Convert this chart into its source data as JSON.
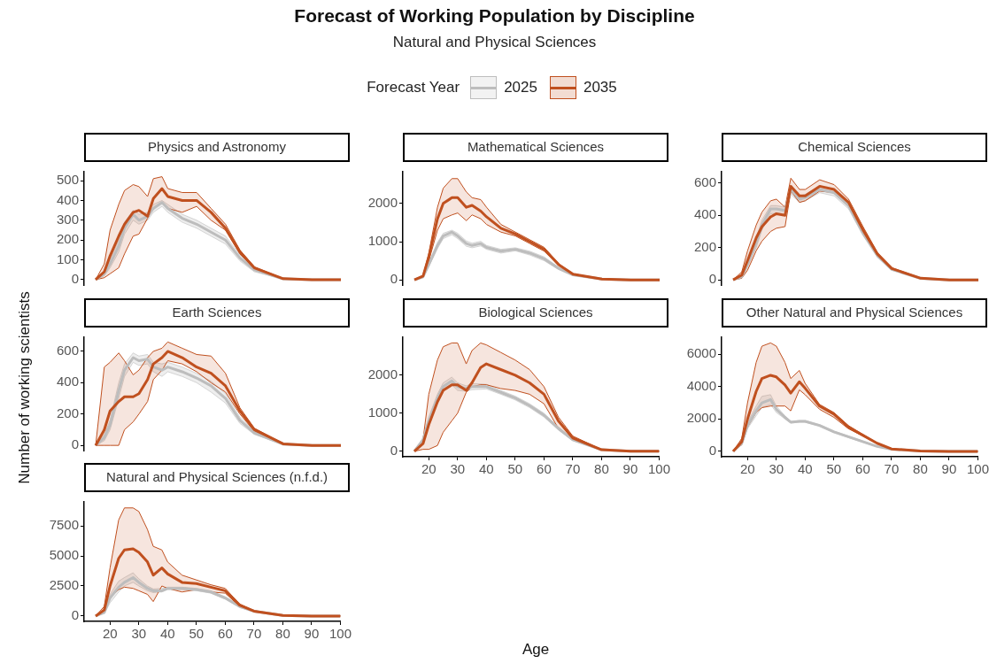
{
  "chart_data": [
    {
      "type": "line",
      "title": "Physics and Astronomy",
      "annotations": [
        "Forecast of Working Population by Discipline",
        "Natural and Physical Sciences"
      ],
      "legend_title": "Forecast Year",
      "legend": "top",
      "tick_labels": "y",
      "x": [
        15,
        18,
        20,
        23,
        25,
        28,
        30,
        33,
        35,
        38,
        40,
        45,
        50,
        55,
        60,
        65,
        70,
        80,
        90,
        100
      ],
      "xlim": [
        11,
        100
      ],
      "xticks": [
        20,
        30,
        40,
        50,
        60,
        70,
        80,
        90,
        100
      ],
      "ylim": [
        -27,
        545
      ],
      "yticks": [
        0,
        100,
        200,
        300,
        400,
        500
      ],
      "series": [
        {
          "name": "2025",
          "color": "#bdbdbd",
          "values": [
            0,
            30,
            80,
            170,
            260,
            330,
            300,
            320,
            360,
            390,
            360,
            310,
            280,
            240,
            200,
            110,
            50,
            4,
            0,
            0
          ],
          "lower": [
            0,
            20,
            60,
            140,
            230,
            300,
            280,
            300,
            340,
            370,
            340,
            290,
            260,
            220,
            180,
            95,
            40,
            3,
            0,
            0
          ],
          "upper": [
            0,
            40,
            100,
            200,
            290,
            350,
            330,
            340,
            380,
            400,
            380,
            330,
            300,
            260,
            220,
            125,
            60,
            6,
            0,
            0
          ]
        },
        {
          "name": "2035",
          "color": "#c0501f",
          "values": [
            0,
            40,
            120,
            220,
            280,
            340,
            350,
            320,
            410,
            460,
            420,
            400,
            400,
            340,
            260,
            140,
            60,
            5,
            0,
            0
          ],
          "lower": [
            0,
            10,
            30,
            60,
            130,
            220,
            230,
            310,
            360,
            390,
            360,
            340,
            370,
            300,
            250,
            130,
            55,
            4,
            0,
            0
          ],
          "upper": [
            0,
            80,
            250,
            380,
            450,
            480,
            470,
            420,
            510,
            520,
            460,
            440,
            440,
            360,
            280,
            150,
            65,
            6,
            0,
            0
          ]
        }
      ]
    },
    {
      "type": "line",
      "title": "Mathematical Sciences",
      "tick_labels": "y",
      "x": [
        15,
        18,
        20,
        23,
        25,
        28,
        30,
        33,
        35,
        38,
        40,
        45,
        50,
        55,
        60,
        65,
        70,
        80,
        90,
        100
      ],
      "xlim": [
        11,
        100
      ],
      "xticks": [
        20,
        30,
        40,
        50,
        60,
        70,
        80,
        90,
        100
      ],
      "ylim": [
        -135,
        2830
      ],
      "yticks": [
        0,
        1000,
        2000
      ],
      "series": [
        {
          "color": "#bdbdbd",
          "values": [
            0,
            80,
            400,
            900,
            1150,
            1250,
            1150,
            950,
            900,
            950,
            850,
            750,
            800,
            700,
            550,
            300,
            130,
            20,
            0,
            0
          ],
          "lower": [
            0,
            60,
            350,
            820,
            1080,
            1180,
            1080,
            880,
            840,
            890,
            800,
            700,
            760,
            650,
            500,
            270,
            110,
            15,
            0,
            0
          ],
          "upper": [
            0,
            100,
            450,
            980,
            1220,
            1300,
            1220,
            1020,
            960,
            1010,
            900,
            800,
            840,
            750,
            600,
            330,
            150,
            22,
            0,
            0
          ]
        },
        {
          "color": "#c0501f",
          "values": [
            0,
            100,
            600,
            1600,
            2000,
            2150,
            2150,
            1900,
            1950,
            1800,
            1650,
            1350,
            1200,
            1000,
            800,
            400,
            150,
            20,
            0,
            0
          ],
          "lower": [
            0,
            80,
            500,
            1300,
            1600,
            1700,
            1750,
            1550,
            1700,
            1600,
            1450,
            1250,
            1150,
            950,
            750,
            380,
            140,
            18,
            0,
            0
          ],
          "upper": [
            0,
            120,
            700,
            1900,
            2400,
            2650,
            2650,
            2300,
            2150,
            2100,
            1900,
            1450,
            1250,
            1050,
            850,
            420,
            160,
            22,
            0,
            0
          ]
        }
      ]
    },
    {
      "type": "line",
      "title": "Chemical Sciences",
      "tick_labels": "y",
      "x": [
        15,
        18,
        20,
        23,
        25,
        28,
        30,
        33,
        35,
        38,
        40,
        45,
        50,
        55,
        60,
        65,
        70,
        80,
        90,
        100
      ],
      "xlim": [
        11,
        100
      ],
      "xticks": [
        20,
        30,
        40,
        50,
        60,
        70,
        80,
        90,
        100
      ],
      "ylim": [
        -32,
        670
      ],
      "yticks": [
        0,
        200,
        400,
        600
      ],
      "series": [
        {
          "color": "#bdbdbd",
          "values": [
            0,
            20,
            100,
            230,
            340,
            440,
            440,
            430,
            560,
            500,
            510,
            560,
            540,
            460,
            290,
            150,
            65,
            9,
            0,
            0
          ],
          "lower": [
            0,
            10,
            80,
            200,
            310,
            410,
            410,
            400,
            530,
            480,
            490,
            540,
            520,
            440,
            275,
            140,
            60,
            8,
            0,
            0
          ],
          "upper": [
            0,
            30,
            120,
            260,
            370,
            460,
            460,
            450,
            580,
            520,
            530,
            580,
            560,
            480,
            305,
            160,
            70,
            10,
            0,
            0
          ]
        },
        {
          "color": "#c0501f",
          "values": [
            0,
            30,
            120,
            260,
            330,
            390,
            410,
            400,
            580,
            520,
            520,
            580,
            560,
            480,
            310,
            160,
            70,
            10,
            0,
            0
          ],
          "lower": [
            0,
            10,
            60,
            180,
            240,
            300,
            320,
            330,
            550,
            480,
            490,
            550,
            540,
            460,
            300,
            150,
            65,
            9,
            0,
            0
          ],
          "upper": [
            0,
            50,
            180,
            340,
            420,
            490,
            500,
            450,
            630,
            560,
            560,
            620,
            590,
            500,
            330,
            170,
            75,
            12,
            0,
            0
          ]
        }
      ]
    },
    {
      "type": "line",
      "title": "Earth Sciences",
      "ylabel": "Number of working scientists",
      "tick_labels": "y",
      "x": [
        15,
        18,
        20,
        23,
        25,
        28,
        30,
        33,
        35,
        38,
        40,
        45,
        50,
        55,
        60,
        65,
        70,
        80,
        90,
        100
      ],
      "xlim": [
        11,
        100
      ],
      "xticks": [
        20,
        30,
        40,
        50,
        60,
        70,
        80,
        90,
        100
      ],
      "ylim": [
        -33,
        690
      ],
      "yticks": [
        0,
        200,
        400,
        600
      ],
      "series": [
        {
          "color": "#bdbdbd",
          "values": [
            0,
            50,
            130,
            350,
            480,
            560,
            540,
            550,
            500,
            480,
            500,
            470,
            430,
            380,
            300,
            160,
            80,
            8,
            0,
            0
          ],
          "lower": [
            0,
            30,
            100,
            300,
            440,
            530,
            510,
            520,
            470,
            440,
            470,
            440,
            400,
            340,
            270,
            140,
            70,
            6,
            0,
            0
          ],
          "upper": [
            0,
            70,
            160,
            400,
            520,
            590,
            570,
            580,
            530,
            520,
            530,
            500,
            460,
            410,
            330,
            180,
            90,
            10,
            0,
            0
          ]
        },
        {
          "color": "#c0501f",
          "values": [
            0,
            100,
            220,
            280,
            310,
            310,
            330,
            420,
            520,
            560,
            600,
            560,
            500,
            460,
            380,
            220,
            100,
            10,
            0,
            0
          ],
          "lower": [
            0,
            0,
            0,
            0,
            100,
            150,
            200,
            280,
            420,
            480,
            540,
            520,
            470,
            400,
            340,
            200,
            90,
            8,
            0,
            0
          ],
          "upper": [
            0,
            500,
            530,
            590,
            540,
            450,
            480,
            560,
            600,
            620,
            660,
            620,
            580,
            570,
            460,
            240,
            110,
            12,
            0,
            0
          ]
        }
      ]
    },
    {
      "type": "line",
      "title": "Biological Sciences",
      "xlabel": "Age",
      "x": [
        15,
        18,
        20,
        23,
        25,
        28,
        30,
        33,
        35,
        38,
        40,
        45,
        50,
        55,
        60,
        65,
        70,
        80,
        90,
        100
      ],
      "xlim": [
        11,
        100
      ],
      "xticks": [
        20,
        30,
        40,
        50,
        60,
        70,
        80,
        90,
        100
      ],
      "ylim": [
        -145,
        3000
      ],
      "yticks": [
        0,
        1000,
        2000
      ],
      "series": [
        {
          "color": "#bdbdbd",
          "values": [
            0,
            300,
            800,
            1400,
            1700,
            1850,
            1700,
            1650,
            1700,
            1700,
            1700,
            1550,
            1400,
            1200,
            950,
            600,
            300,
            40,
            0,
            0
          ],
          "lower": [
            0,
            250,
            700,
            1300,
            1600,
            1750,
            1600,
            1580,
            1620,
            1630,
            1640,
            1500,
            1350,
            1150,
            900,
            560,
            280,
            35,
            0,
            0
          ],
          "upper": [
            0,
            350,
            900,
            1500,
            1800,
            1950,
            1800,
            1720,
            1780,
            1770,
            1760,
            1600,
            1450,
            1250,
            1000,
            640,
            320,
            45,
            0,
            0
          ]
        },
        {
          "color": "#c0501f",
          "values": [
            0,
            200,
            700,
            1300,
            1600,
            1750,
            1750,
            1600,
            1800,
            2200,
            2300,
            2150,
            2000,
            1800,
            1500,
            800,
            350,
            40,
            0,
            0
          ],
          "lower": [
            0,
            50,
            50,
            150,
            500,
            800,
            1000,
            1550,
            1700,
            1750,
            1750,
            1650,
            1600,
            1500,
            1250,
            600,
            300,
            35,
            0,
            0
          ],
          "upper": [
            0,
            300,
            1500,
            2400,
            2750,
            2850,
            2850,
            2300,
            2650,
            2850,
            2800,
            2600,
            2400,
            2150,
            1700,
            900,
            400,
            45,
            0,
            0
          ]
        }
      ]
    },
    {
      "type": "line",
      "title": "Other Natural and Physical Sciences",
      "x": [
        15,
        18,
        20,
        23,
        25,
        28,
        30,
        33,
        35,
        38,
        40,
        45,
        50,
        55,
        60,
        65,
        70,
        80,
        90,
        100
      ],
      "xlim": [
        11,
        100
      ],
      "xticks": [
        20,
        30,
        40,
        50,
        60,
        70,
        80,
        90,
        100
      ],
      "ylim": [
        -335,
        7050
      ],
      "yticks": [
        0,
        2000,
        4000,
        6000
      ],
      "series": [
        {
          "color": "#bdbdbd",
          "values": [
            0,
            500,
            1600,
            2500,
            3000,
            3200,
            2600,
            2100,
            1800,
            1850,
            1850,
            1600,
            1200,
            900,
            600,
            300,
            130,
            20,
            0,
            0
          ],
          "lower": [
            0,
            400,
            1400,
            2200,
            2700,
            2900,
            2400,
            2000,
            1750,
            1800,
            1800,
            1550,
            1150,
            850,
            560,
            280,
            115,
            15,
            0,
            0
          ],
          "upper": [
            0,
            600,
            1800,
            2800,
            3400,
            3500,
            2800,
            2200,
            1850,
            1900,
            1900,
            1650,
            1250,
            950,
            640,
            320,
            145,
            22,
            0,
            0
          ]
        },
        {
          "color": "#c0501f",
          "values": [
            0,
            600,
            2000,
            3700,
            4500,
            4700,
            4600,
            4100,
            3600,
            4300,
            3900,
            2800,
            2300,
            1500,
            1000,
            500,
            150,
            20,
            0,
            0
          ],
          "lower": [
            0,
            400,
            1500,
            2400,
            2700,
            2800,
            2800,
            2800,
            2500,
            3800,
            3500,
            2600,
            2100,
            1400,
            950,
            480,
            140,
            18,
            0,
            0
          ],
          "upper": [
            0,
            800,
            3000,
            5500,
            6500,
            6700,
            6500,
            5500,
            4500,
            5000,
            4200,
            2900,
            2400,
            1600,
            1050,
            520,
            160,
            22,
            0,
            0
          ]
        }
      ]
    },
    {
      "type": "line",
      "title": "Natural and Physical Sciences (n.f.d.)",
      "x": [
        15,
        18,
        20,
        23,
        25,
        28,
        30,
        33,
        35,
        38,
        40,
        45,
        50,
        55,
        60,
        65,
        70,
        80,
        90,
        100
      ],
      "xlim": [
        11,
        100
      ],
      "xticks": [
        20,
        30,
        40,
        50,
        60,
        70,
        80,
        90,
        100
      ],
      "ylim": [
        -450,
        9500
      ],
      "yticks": [
        0,
        2500,
        5000,
        7500
      ],
      "series": [
        {
          "color": "#bdbdbd",
          "values": [
            0,
            300,
            1500,
            2400,
            2800,
            3200,
            2800,
            2300,
            2100,
            2100,
            2300,
            2300,
            2200,
            2000,
            1500,
            800,
            400,
            50,
            0,
            0
          ],
          "lower": [
            0,
            200,
            1100,
            2000,
            2500,
            2800,
            2500,
            2100,
            1950,
            2000,
            2200,
            2200,
            2100,
            1900,
            1400,
            700,
            350,
            45,
            0,
            0
          ],
          "upper": [
            0,
            400,
            1800,
            2900,
            3200,
            3600,
            3100,
            2500,
            2250,
            2300,
            2400,
            2400,
            2300,
            2100,
            1600,
            900,
            450,
            55,
            0,
            0
          ]
        },
        {
          "color": "#c0501f",
          "values": [
            0,
            500,
            2500,
            4800,
            5500,
            5600,
            5300,
            4500,
            3400,
            4000,
            3500,
            2800,
            2700,
            2400,
            2100,
            900,
            400,
            50,
            0,
            0
          ],
          "lower": [
            0,
            300,
            1500,
            2200,
            2400,
            2300,
            2100,
            1800,
            1200,
            2500,
            2300,
            2000,
            2200,
            2000,
            1900,
            800,
            380,
            45,
            0,
            0
          ],
          "upper": [
            0,
            800,
            4000,
            8000,
            9000,
            9000,
            8700,
            7200,
            5800,
            5500,
            4500,
            3400,
            3000,
            2600,
            2300,
            1000,
            450,
            55,
            0,
            0
          ]
        }
      ]
    }
  ]
}
